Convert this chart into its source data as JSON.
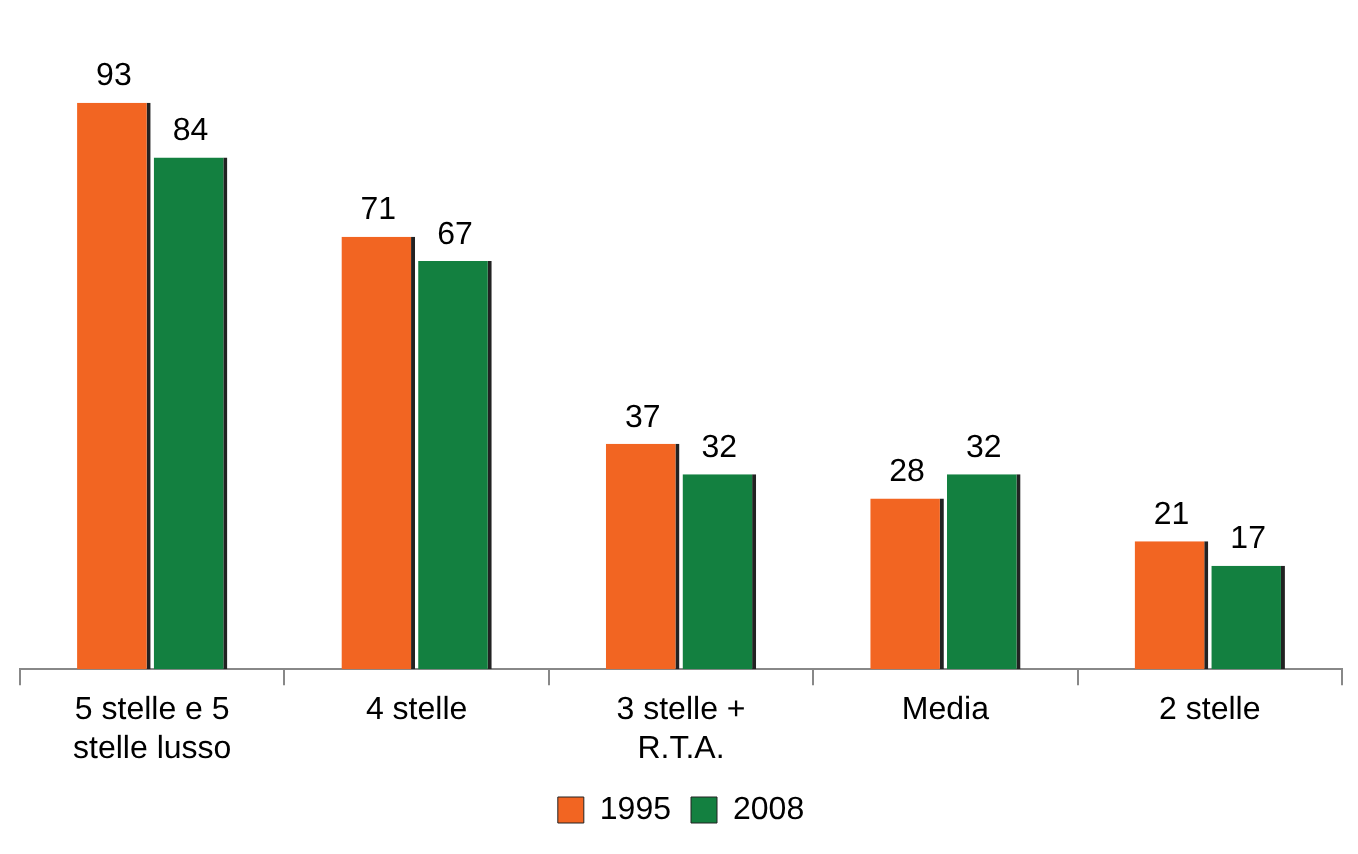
{
  "chart_data": {
    "type": "bar",
    "categories": [
      "5 stelle e 5 stelle lusso",
      "4 stelle",
      "3 stelle + R.T.A.",
      "Media",
      "2 stelle"
    ],
    "series": [
      {
        "name": "1995",
        "color": "#f26522",
        "values": [
          93,
          71,
          37,
          28,
          21
        ]
      },
      {
        "name": "2008",
        "color": "#138040",
        "values": [
          84,
          67,
          32,
          32,
          17
        ]
      }
    ],
    "data_labels": true,
    "legend": "bottom",
    "grid": false
  }
}
